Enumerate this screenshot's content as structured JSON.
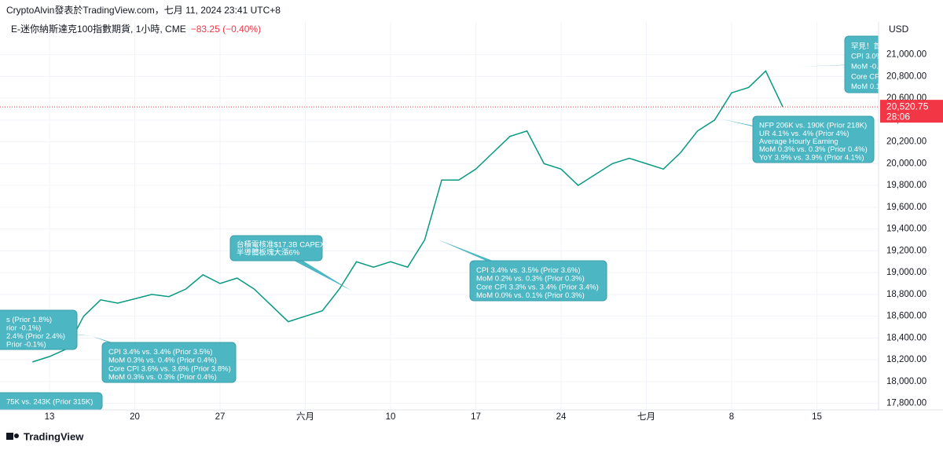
{
  "header": {
    "credit": "CryptoAlvin發表於TradingView.com，七月 11, 2024 23:41 UTC+8",
    "symbol": "E-迷你納斯達克100指數期貨, 1小時, CME",
    "change": "−83.25 (−0.40%)"
  },
  "chart_data": {
    "type": "line",
    "categories": [
      null,
      "13",
      null,
      null,
      null,
      null,
      "20",
      null,
      null,
      null,
      null,
      "27",
      null,
      null,
      null,
      null,
      "六月",
      null,
      null,
      null,
      null,
      "10",
      null,
      null,
      null,
      null,
      "17",
      null,
      null,
      null,
      null,
      "24",
      null,
      null,
      null,
      null,
      "七月",
      null,
      null,
      null,
      null,
      "8",
      null,
      null,
      null,
      null,
      "15",
      null,
      null,
      null
    ],
    "series": [
      {
        "color": "#089981",
        "values": [
          18180,
          18230,
          18300,
          18600,
          18750,
          18720,
          18760,
          18800,
          18780,
          18850,
          18980,
          18900,
          18950,
          18850,
          18700,
          18550,
          18600,
          18650,
          18850,
          19100,
          19050,
          19100,
          19050,
          19300,
          19850,
          19850,
          19950,
          20100,
          20250,
          20300,
          20000,
          19950,
          19800,
          19900,
          20000,
          20050,
          20000,
          19950,
          20100,
          20300,
          20400,
          20650,
          20700,
          20850,
          20520.75,
          null,
          null,
          null,
          null,
          null
        ]
      }
    ],
    "ylim": [
      17740,
      21300
    ],
    "yticks": [
      {
        "value": 17800,
        "label": "17,800.00"
      },
      {
        "value": 18000,
        "label": "18,000.00"
      },
      {
        "value": 18200,
        "label": "18,200.00"
      },
      {
        "value": 18400,
        "label": "18,400.00"
      },
      {
        "value": 18600,
        "label": "18,600.00"
      },
      {
        "value": 18800,
        "label": "18,800.00"
      },
      {
        "value": 19000,
        "label": "19,000.00"
      },
      {
        "value": 19200,
        "label": "19,200.00"
      },
      {
        "value": 19400,
        "label": "19,400.00"
      },
      {
        "value": 19600,
        "label": "19,600.00"
      },
      {
        "value": 19800,
        "label": "19,800.00"
      },
      {
        "value": 20000,
        "label": "20,000.00"
      },
      {
        "value": 20200,
        "label": "20,200.00"
      },
      {
        "value": 20400,
        "label": "20,400.00"
      },
      {
        "value": 20600,
        "label": "20,600.00"
      },
      {
        "value": 20800,
        "label": "20,800.00"
      },
      {
        "value": 21000,
        "label": "21,000.00"
      }
    ],
    "grid": true,
    "currency": "USD",
    "last_price": {
      "value": 20520.75,
      "label": "20,520.75"
    },
    "countdown": "28:06",
    "annotations": [
      {
        "lines": [
          "s (Prior 1.8%)",
          "rior -0.1%)",
          "2.4% (Prior 2.4%)",
          "Prior -0.1%)"
        ]
      },
      {
        "lines": [
          "CPI 3.4% vs. 3.4% (Prior 3.5%)",
          "MoM 0.3% vs. 0.4% (Prior 0.4%)",
          "Core CPI 3.6% vs. 3.6% (Prior 3.8%)",
          "MoM 0.3% vs. 0.3% (Prior 0.4%)"
        ]
      },
      {
        "lines": [
          "75K vs. 243K (Prior 315K)"
        ]
      },
      {
        "lines": [
          "台積電核准$17.3B CAPEX",
          "半導體板塊大漲6%"
        ]
      },
      {
        "lines": [
          "CPI 3.4% vs. 3.5% (Prior 3.6%)",
          "MoM 0.2% vs. 0.3% (Prior 0.3%)",
          "Core CPI 3.3% vs. 3.4% (Prior 3.4%)",
          "MoM 0.0% vs. 0.1% (Prior 0.3%)"
        ]
      },
      {
        "lines": [
          "NFP 206K vs. 190K (Prior 218K)",
          "UR 4.1% vs. 4% (Prior 4%)",
          "Average Hourly Earning",
          "MoM 0.3% vs. 0.3% (Prior 0.4%)",
          "YoY 3.9% vs. 3.9% (Prior 4.1%)"
        ]
      },
      {
        "lines": [
          "罕見！首",
          "CPI 3.0%",
          "MoM -0.",
          "Core CPI",
          "MoM 0.1"
        ]
      }
    ]
  },
  "footer": {
    "brand": "TradingView"
  }
}
